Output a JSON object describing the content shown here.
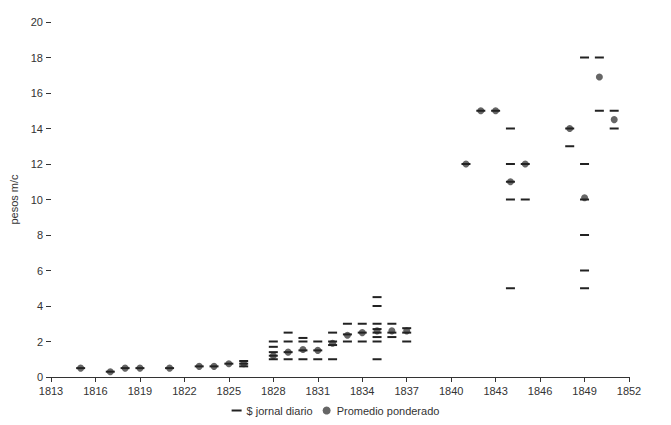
{
  "chart_data": {
    "type": "scatter",
    "y_label": "pesos m/c",
    "xlim": [
      1813,
      1852
    ],
    "xticks": [
      1813,
      1816,
      1819,
      1822,
      1825,
      1828,
      1831,
      1834,
      1837,
      1840,
      1843,
      1846,
      1849,
      1852
    ],
    "ylim": [
      0,
      20
    ],
    "yticks": [
      0,
      2,
      4,
      6,
      8,
      10,
      12,
      14,
      16,
      18,
      20
    ],
    "grid": false,
    "legend": "bottom",
    "series": [
      {
        "name": "$ jornal diario",
        "color": "#222222",
        "marker": "dash",
        "x": [
          1815,
          1817,
          1818,
          1819,
          1821,
          1823,
          1824,
          1825,
          1826,
          1826,
          1826,
          1828,
          1828,
          1828,
          1828,
          1828,
          1829,
          1829,
          1829,
          1829,
          1830,
          1830,
          1830,
          1830,
          1831,
          1831,
          1831,
          1832,
          1832,
          1832,
          1832,
          1833,
          1833,
          1833,
          1834,
          1834,
          1834,
          1835,
          1835,
          1835,
          1835,
          1835,
          1835,
          1835,
          1835,
          1836,
          1836,
          1836,
          1837,
          1837,
          1837,
          1841,
          1842,
          1843,
          1844,
          1844,
          1844,
          1844,
          1844,
          1845,
          1845,
          1848,
          1848,
          1849,
          1849,
          1849,
          1849,
          1849,
          1849,
          1850,
          1850,
          1851,
          1851
        ],
        "values": [
          0.5,
          0.3,
          0.5,
          0.5,
          0.5,
          0.6,
          0.6,
          0.75,
          0.6,
          0.75,
          0.9,
          1.0,
          1.2,
          1.4,
          1.7,
          2.0,
          1.0,
          1.4,
          2.0,
          2.5,
          1.0,
          1.5,
          2.0,
          2.2,
          1.0,
          1.5,
          2.0,
          1.0,
          1.8,
          2.0,
          2.5,
          2.0,
          2.4,
          3.0,
          2.0,
          2.5,
          3.0,
          1.0,
          2.0,
          2.25,
          2.5,
          2.7,
          3.0,
          4.0,
          4.5,
          2.25,
          2.5,
          3.0,
          2.0,
          2.5,
          2.75,
          12,
          15,
          15,
          5,
          10,
          11,
          12,
          14,
          10,
          12,
          13,
          14,
          5,
          6,
          8,
          10,
          12,
          18,
          15,
          18,
          14,
          15
        ]
      },
      {
        "name": "Promedio ponderado",
        "color": "#666666",
        "marker": "circle",
        "x": [
          1815,
          1817,
          1818,
          1819,
          1821,
          1823,
          1824,
          1825,
          1826,
          1828,
          1829,
          1830,
          1831,
          1832,
          1833,
          1834,
          1835,
          1836,
          1837,
          1841,
          1842,
          1843,
          1844,
          1845,
          1848,
          1849,
          1850,
          1851
        ],
        "values": [
          0.5,
          0.3,
          0.5,
          0.5,
          0.5,
          0.6,
          0.6,
          0.75,
          0.75,
          1.2,
          1.4,
          1.55,
          1.5,
          1.9,
          2.35,
          2.5,
          2.6,
          2.6,
          2.6,
          12,
          15,
          15,
          11,
          12,
          14,
          10.1,
          16.9,
          14.5
        ]
      }
    ]
  }
}
